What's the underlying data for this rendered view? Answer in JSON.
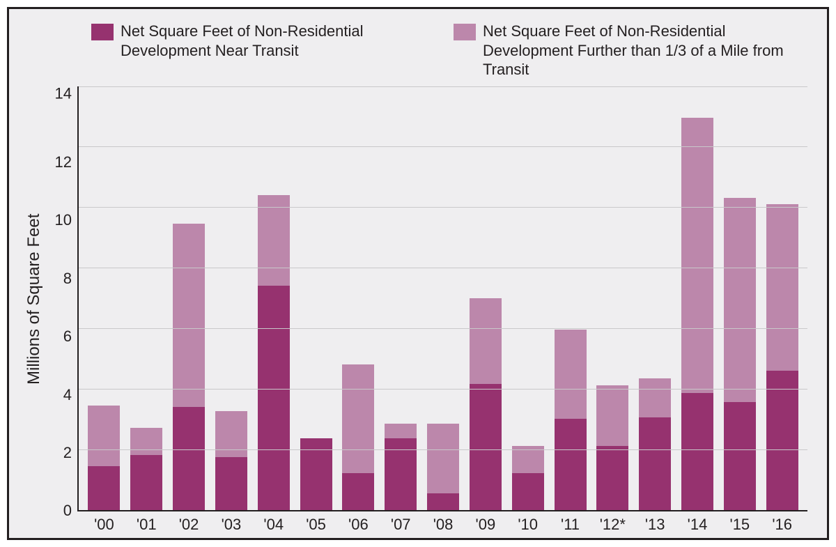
{
  "chart": {
    "type": "stacked-bar",
    "background_color": "#efeef0",
    "frame_border_color": "#231f20",
    "axis_color": "#231f20",
    "grid_color": "#c9c8ca",
    "text_color": "#231f20",
    "title_fontsize": 22,
    "label_fontsize": 24,
    "tick_fontsize": 22,
    "ylabel": "Millions of Square Feet",
    "ylim": [
      0,
      14
    ],
    "ytick_step": 2,
    "yticks": [
      0,
      2,
      4,
      6,
      8,
      10,
      12,
      14
    ],
    "bar_width": 0.75,
    "legend": [
      {
        "label": "Net Square Feet of Non-Residential Development Near Transit",
        "color": "#96326f"
      },
      {
        "label": "Net Square Feet of Non-Residential Development Further than 1/3 of a Mile from Transit",
        "color": "#bc87ab"
      }
    ],
    "categories": [
      "'00",
      "'01",
      "'02",
      "'03",
      "'04",
      "'05",
      "'06",
      "'07",
      "'08",
      "'09",
      "'10",
      "'11",
      "'12*",
      "'13",
      "'14",
      "'15",
      "'16"
    ],
    "series": {
      "near": [
        1.45,
        1.8,
        3.4,
        1.75,
        7.4,
        2.35,
        1.2,
        2.35,
        0.55,
        4.15,
        1.2,
        3.0,
        2.1,
        3.05,
        3.85,
        3.55,
        4.6
      ],
      "further": [
        2.0,
        0.9,
        6.05,
        1.5,
        3.0,
        0.0,
        3.6,
        0.5,
        2.3,
        2.85,
        0.9,
        2.95,
        2.0,
        1.3,
        9.1,
        6.75,
        5.5
      ]
    }
  }
}
